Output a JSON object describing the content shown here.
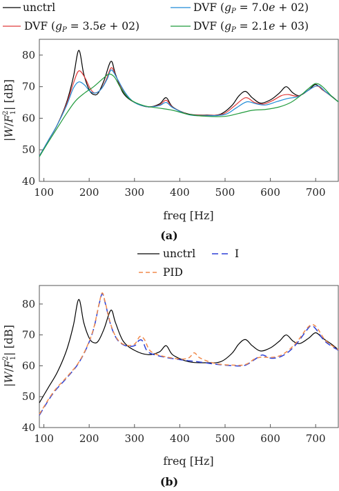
{
  "chart_data": [
    {
      "panel_label": "(a)",
      "type": "line",
      "xlabel": "freq [Hz]",
      "ylabel": "|W/F₁²| [dB]",
      "xlim": [
        90,
        750
      ],
      "ylim": [
        40,
        85
      ],
      "xticks": [
        100,
        200,
        300,
        400,
        500,
        600,
        700
      ],
      "yticks": [
        40,
        50,
        60,
        70,
        80
      ],
      "grid": false,
      "legend_position": "top",
      "series": [
        {
          "name": "unctrl",
          "color": "#000000",
          "dash": "",
          "points": [
            [
              90,
              48
            ],
            [
              110,
              53
            ],
            [
              130,
              58
            ],
            [
              150,
              65
            ],
            [
              165,
              73
            ],
            [
              177,
              81.5
            ],
            [
              188,
              74
            ],
            [
              200,
              69
            ],
            [
              210,
              67.5
            ],
            [
              220,
              68
            ],
            [
              233,
              72
            ],
            [
              248,
              78
            ],
            [
              258,
              74
            ],
            [
              275,
              68
            ],
            [
              300,
              65
            ],
            [
              330,
              63.6
            ],
            [
              355,
              64.5
            ],
            [
              370,
              66.5
            ],
            [
              385,
              63.5
            ],
            [
              420,
              61.3
            ],
            [
              460,
              61
            ],
            [
              490,
              61.3
            ],
            [
              515,
              64
            ],
            [
              530,
              67
            ],
            [
              545,
              68.5
            ],
            [
              560,
              66.5
            ],
            [
              578,
              64.8
            ],
            [
              600,
              65.8
            ],
            [
              620,
              68
            ],
            [
              635,
              70
            ],
            [
              650,
              68
            ],
            [
              665,
              67.2
            ],
            [
              685,
              69
            ],
            [
              700,
              70.7
            ],
            [
              715,
              69
            ],
            [
              735,
              67
            ],
            [
              750,
              65.2
            ]
          ]
        },
        {
          "name": "DVF (g_P = 3.5e+02)",
          "color": "#e03a3a",
          "dash": "",
          "points": [
            [
              90,
              48
            ],
            [
              110,
              53
            ],
            [
              130,
              58
            ],
            [
              150,
              64.5
            ],
            [
              165,
              71
            ],
            [
              177,
              75
            ],
            [
              190,
              73
            ],
            [
              202,
              69.5
            ],
            [
              212,
              68
            ],
            [
              225,
              69
            ],
            [
              237,
              72
            ],
            [
              249,
              76
            ],
            [
              260,
              73
            ],
            [
              278,
              68
            ],
            [
              300,
              65
            ],
            [
              330,
              63.6
            ],
            [
              355,
              64.2
            ],
            [
              370,
              65.7
            ],
            [
              385,
              63.4
            ],
            [
              420,
              61.2
            ],
            [
              460,
              60.9
            ],
            [
              495,
              61.3
            ],
            [
              520,
              63.8
            ],
            [
              545,
              66.5
            ],
            [
              565,
              65
            ],
            [
              585,
              64.5
            ],
            [
              605,
              65.6
            ],
            [
              625,
              67.2
            ],
            [
              640,
              67.5
            ],
            [
              660,
              67
            ],
            [
              680,
              68.5
            ],
            [
              702,
              70.2
            ],
            [
              720,
              68.5
            ],
            [
              750,
              65.2
            ]
          ]
        },
        {
          "name": "DVF (g_P = 7.0e+02)",
          "color": "#1f8bd6",
          "dash": "",
          "points": [
            [
              90,
              48
            ],
            [
              110,
              53
            ],
            [
              130,
              58
            ],
            [
              150,
              64
            ],
            [
              165,
              69.5
            ],
            [
              177,
              71.5
            ],
            [
              190,
              70.5
            ],
            [
              202,
              68.5
            ],
            [
              215,
              68
            ],
            [
              228,
              69.5
            ],
            [
              240,
              72.5
            ],
            [
              249,
              75.3
            ],
            [
              262,
              72.5
            ],
            [
              280,
              68
            ],
            [
              300,
              65
            ],
            [
              330,
              63.6
            ],
            [
              355,
              64
            ],
            [
              370,
              65
            ],
            [
              385,
              63.3
            ],
            [
              420,
              61.1
            ],
            [
              460,
              60.8
            ],
            [
              500,
              61.2
            ],
            [
              525,
              63.3
            ],
            [
              548,
              65.2
            ],
            [
              570,
              64.5
            ],
            [
              590,
              64.2
            ],
            [
              615,
              65.3
            ],
            [
              640,
              66.3
            ],
            [
              660,
              66.8
            ],
            [
              680,
              68.5
            ],
            [
              704,
              70.3
            ],
            [
              722,
              68.4
            ],
            [
              750,
              65.2
            ]
          ]
        },
        {
          "name": "DVF (g_P = 2.1e+03)",
          "color": "#1e9a3a",
          "dash": "",
          "points": [
            [
              90,
              47.8
            ],
            [
              110,
              52.5
            ],
            [
              130,
              57
            ],
            [
              150,
              61.5
            ],
            [
              170,
              65.5
            ],
            [
              190,
              68
            ],
            [
              210,
              70
            ],
            [
              230,
              72.5
            ],
            [
              244,
              74
            ],
            [
              256,
              73
            ],
            [
              270,
              69.5
            ],
            [
              290,
              66
            ],
            [
              320,
              64
            ],
            [
              355,
              63.2
            ],
            [
              385,
              62.5
            ],
            [
              420,
              61.2
            ],
            [
              460,
              60.6
            ],
            [
              500,
              60.6
            ],
            [
              530,
              61.5
            ],
            [
              560,
              62.5
            ],
            [
              590,
              62.8
            ],
            [
              620,
              63.6
            ],
            [
              645,
              65
            ],
            [
              665,
              67
            ],
            [
              685,
              69.5
            ],
            [
              700,
              71
            ],
            [
              715,
              70
            ],
            [
              735,
              67
            ],
            [
              750,
              65.2
            ]
          ]
        }
      ]
    },
    {
      "panel_label": "(b)",
      "type": "line",
      "xlabel": "freq [Hz]",
      "ylabel": "|W/F₁²| [dB]",
      "xlim": [
        90,
        750
      ],
      "ylim": [
        40,
        86
      ],
      "xticks": [
        100,
        200,
        300,
        400,
        500,
        600,
        700
      ],
      "yticks": [
        40,
        50,
        60,
        70,
        80
      ],
      "grid": false,
      "legend_position": "top",
      "series": [
        {
          "name": "unctrl",
          "color": "#000000",
          "dash": "",
          "points": [
            [
              90,
              48
            ],
            [
              110,
              53
            ],
            [
              130,
              58
            ],
            [
              150,
              65
            ],
            [
              165,
              73
            ],
            [
              177,
              81.5
            ],
            [
              188,
              74
            ],
            [
              200,
              69
            ],
            [
              210,
              67.5
            ],
            [
              220,
              68
            ],
            [
              233,
              72
            ],
            [
              248,
              78
            ],
            [
              258,
              74
            ],
            [
              275,
              68
            ],
            [
              300,
              65
            ],
            [
              330,
              63.6
            ],
            [
              355,
              64.5
            ],
            [
              370,
              66.5
            ],
            [
              385,
              63.5
            ],
            [
              420,
              61.3
            ],
            [
              460,
              61
            ],
            [
              490,
              61.3
            ],
            [
              515,
              64
            ],
            [
              530,
              67
            ],
            [
              545,
              68.5
            ],
            [
              560,
              66.5
            ],
            [
              578,
              64.8
            ],
            [
              600,
              65.8
            ],
            [
              620,
              68
            ],
            [
              635,
              70
            ],
            [
              650,
              68
            ],
            [
              665,
              67.2
            ],
            [
              685,
              69
            ],
            [
              700,
              70.7
            ],
            [
              715,
              69
            ],
            [
              735,
              67
            ],
            [
              750,
              65.2
            ]
          ]
        },
        {
          "name": "I",
          "color": "#2b3fd6",
          "dash": "9 5",
          "points": [
            [
              90,
              44
            ],
            [
              120,
              51
            ],
            [
              150,
              56
            ],
            [
              175,
              60.5
            ],
            [
              195,
              66
            ],
            [
              210,
              72
            ],
            [
              222,
              80
            ],
            [
              229,
              83.3
            ],
            [
              236,
              80
            ],
            [
              248,
              73
            ],
            [
              262,
              68.5
            ],
            [
              280,
              66.5
            ],
            [
              300,
              66.5
            ],
            [
              310,
              68.2
            ],
            [
              318,
              68
            ],
            [
              330,
              64.5
            ],
            [
              360,
              63
            ],
            [
              400,
              62
            ],
            [
              440,
              61.3
            ],
            [
              480,
              60.5
            ],
            [
              520,
              60
            ],
            [
              545,
              60.2
            ],
            [
              570,
              62.5
            ],
            [
              583,
              63.5
            ],
            [
              600,
              62.5
            ],
            [
              620,
              62.8
            ],
            [
              640,
              64.5
            ],
            [
              660,
              67.5
            ],
            [
              680,
              71.5
            ],
            [
              690,
              73
            ],
            [
              700,
              72
            ],
            [
              720,
              68
            ],
            [
              750,
              65
            ]
          ]
        },
        {
          "name": "PID",
          "color": "#f08a4b",
          "dash": "6 4",
          "points": [
            [
              90,
              44.3
            ],
            [
              120,
              51.3
            ],
            [
              150,
              56.3
            ],
            [
              175,
              60.7
            ],
            [
              195,
              66.2
            ],
            [
              210,
              72.2
            ],
            [
              222,
              80.2
            ],
            [
              229,
              83.6
            ],
            [
              236,
              80.2
            ],
            [
              248,
              73.2
            ],
            [
              262,
              68.7
            ],
            [
              280,
              66.7
            ],
            [
              300,
              67
            ],
            [
              312,
              69.5
            ],
            [
              322,
              68.5
            ],
            [
              335,
              64.8
            ],
            [
              360,
              63.2
            ],
            [
              400,
              62.2
            ],
            [
              420,
              62.6
            ],
            [
              432,
              64.2
            ],
            [
              445,
              62.5
            ],
            [
              480,
              60.7
            ],
            [
              520,
              60.2
            ],
            [
              545,
              60.4
            ],
            [
              565,
              62.2
            ],
            [
              580,
              62.8
            ],
            [
              600,
              62.7
            ],
            [
              620,
              63.2
            ],
            [
              640,
              65
            ],
            [
              660,
              68
            ],
            [
              680,
              72
            ],
            [
              692,
              73.3
            ],
            [
              703,
              72.3
            ],
            [
              722,
              68.2
            ],
            [
              750,
              65.2
            ]
          ]
        }
      ]
    }
  ]
}
